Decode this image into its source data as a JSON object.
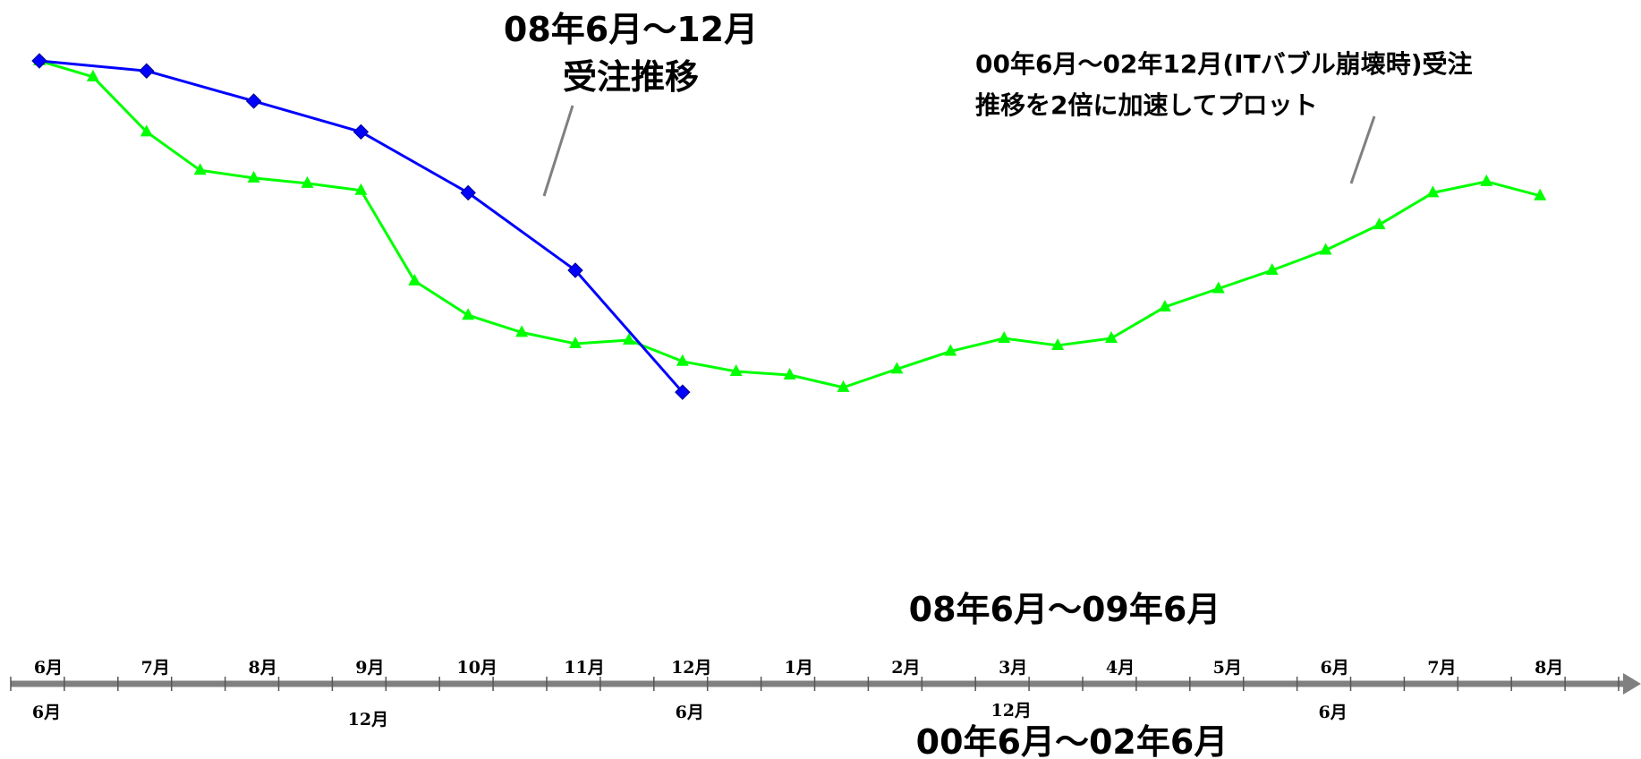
{
  "chart_data": {
    "type": "line",
    "annotations": {
      "blue_series_label": [
        "08年6月～12月",
        "受注推移"
      ],
      "green_series_label": [
        "00年6月～02年12月(ITバブル崩壊時)受注",
        "推移を2倍に加速してプロット"
      ],
      "upper_axis_title": "08年6月～09年6月",
      "lower_axis_title": "00年6月～02年6月"
    },
    "upper_axis_months": [
      "6月",
      "7月",
      "8月",
      "9月",
      "10月",
      "11月",
      "12月",
      "1月",
      "2月",
      "3月",
      "4月",
      "5月",
      "6月",
      "7月",
      "8月"
    ],
    "lower_axis_labels": [
      "6月",
      "12月",
      "6月",
      "12月",
      "6月"
    ],
    "series": [
      {
        "color": "#0000ff",
        "marker": "diamond",
        "x": [
          0,
          1,
          2,
          3,
          4,
          5,
          6
        ],
        "y": [
          100,
          98.3,
          93.2,
          88.0,
          77.7,
          64.6,
          44.0
        ]
      },
      {
        "color": "#00ff00",
        "marker": "triangle",
        "x": [
          0,
          0.5,
          1,
          1.5,
          2,
          2.5,
          3,
          3.5,
          4,
          4.5,
          5,
          5.5,
          6,
          6.5,
          7,
          7.5,
          8,
          8.5,
          9,
          9.5,
          10,
          10.5,
          11,
          11.5,
          12,
          12.5,
          13,
          13.5,
          14
        ],
        "y": [
          100,
          97.3,
          88.0,
          81.5,
          80.2,
          79.3,
          78.1,
          62.8,
          57.0,
          54.1,
          52.2,
          52.8,
          49.2,
          47.5,
          46.9,
          44.8,
          47.9,
          50.9,
          53.1,
          51.9,
          53.1,
          58.4,
          61.5,
          64.6,
          68.0,
          72.3,
          77.7,
          79.6,
          77.2
        ]
      }
    ]
  }
}
